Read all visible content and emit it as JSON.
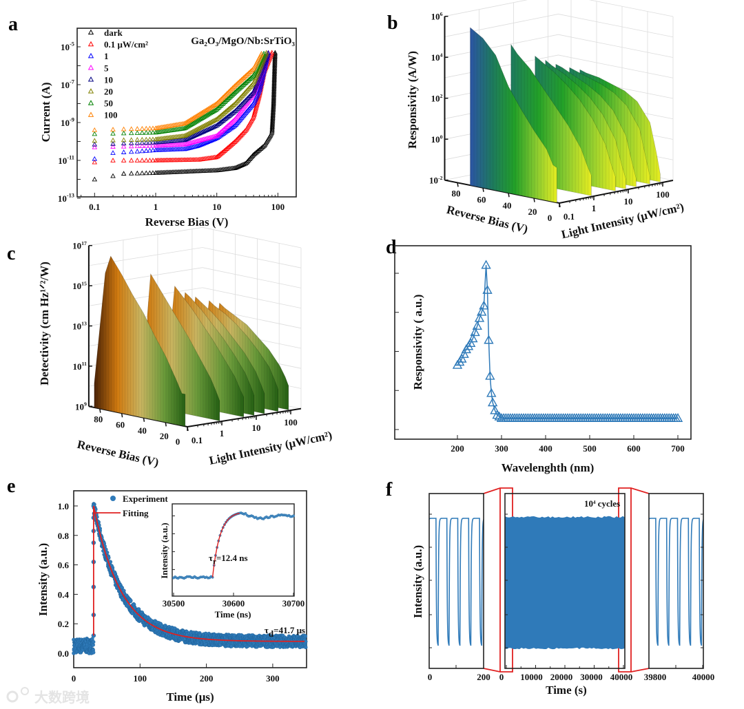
{
  "panel_labels": {
    "a": "a",
    "b": "b",
    "c": "c",
    "d": "d",
    "e": "e",
    "f": "f"
  },
  "watermark": "大数跨境",
  "chart_data": [
    {
      "panel": "a",
      "type": "scatter",
      "title": "Ga₂O₃/MgO/Nb:SrTiO₃",
      "xlabel": "Reverse Bias (V)",
      "ylabel": "Current (A)",
      "xscale": "log",
      "yscale": "log",
      "xlim": [
        0.05,
        200
      ],
      "ylim": [
        1e-13,
        0.0001
      ],
      "xticks": [
        0.1,
        1,
        10,
        100
      ],
      "xtick_labels": [
        "0.1",
        "1",
        "10",
        "100"
      ],
      "ytick_exponents": [
        -13,
        -11,
        -9,
        -7,
        -5
      ],
      "legend": {
        "position": "top-left",
        "unit": "μW/cm²"
      },
      "series": [
        {
          "name": "dark",
          "color": "#000000",
          "points": [
            [
              0.1,
              1e-12
            ],
            [
              0.2,
              1.5e-12
            ],
            [
              0.3,
              2e-12
            ],
            [
              1,
              2.2e-12
            ],
            [
              10,
              3e-12
            ],
            [
              20,
              4e-12
            ],
            [
              30,
              7e-12
            ],
            [
              40,
              2e-11
            ],
            [
              60,
              6e-11
            ],
            [
              75,
              2e-10
            ],
            [
              80,
              3e-10
            ],
            [
              85,
              1e-08
            ],
            [
              90,
              5e-06
            ]
          ]
        },
        {
          "name": "0.1",
          "color": "#ff0000",
          "points": [
            [
              0.1,
              8e-12
            ],
            [
              0.2,
              1e-11
            ],
            [
              1,
              1e-11
            ],
            [
              5,
              1.1e-11
            ],
            [
              10,
              1.5e-11
            ],
            [
              13,
              3e-11
            ],
            [
              20,
              1e-10
            ],
            [
              30,
              4e-10
            ],
            [
              40,
              2e-09
            ],
            [
              50,
              3e-08
            ],
            [
              60,
              5e-07
            ],
            [
              80,
              5e-06
            ]
          ]
        },
        {
          "name": "1",
          "color": "#0000ff",
          "points": [
            [
              0.1,
              1.2e-11
            ],
            [
              0.2,
              2.5e-11
            ],
            [
              0.5,
              3e-11
            ],
            [
              1,
              3.5e-11
            ],
            [
              3,
              4e-11
            ],
            [
              5,
              6e-11
            ],
            [
              10,
              1.5e-10
            ],
            [
              20,
              7e-10
            ],
            [
              40,
              1e-08
            ],
            [
              50,
              5e-08
            ],
            [
              70,
              5e-06
            ]
          ]
        },
        {
          "name": "5",
          "color": "#ff00ff",
          "points": [
            [
              0.1,
              5e-11
            ],
            [
              1,
              6e-11
            ],
            [
              3,
              7e-11
            ],
            [
              10,
              2e-10
            ],
            [
              20,
              1.5e-09
            ],
            [
              40,
              3e-08
            ],
            [
              70,
              5e-06
            ]
          ]
        },
        {
          "name": "10",
          "color": "#000080",
          "points": [
            [
              0.1,
              7e-11
            ],
            [
              1,
              9e-11
            ],
            [
              3,
              1.2e-10
            ],
            [
              10,
              7e-10
            ],
            [
              20,
              4e-09
            ],
            [
              40,
              4e-08
            ],
            [
              70,
              5e-06
            ]
          ]
        },
        {
          "name": "20",
          "color": "#808000",
          "points": [
            [
              0.1,
              1.1e-10
            ],
            [
              1,
              1.3e-10
            ],
            [
              3,
              2e-10
            ],
            [
              10,
              1.5e-09
            ],
            [
              20,
              1e-08
            ],
            [
              40,
              1.2e-07
            ],
            [
              65,
              5e-06
            ]
          ]
        },
        {
          "name": "50",
          "color": "#008000",
          "points": [
            [
              0.1,
              2.5e-10
            ],
            [
              1,
              3e-10
            ],
            [
              3,
              5e-10
            ],
            [
              10,
              5e-09
            ],
            [
              20,
              4e-08
            ],
            [
              40,
              3e-07
            ],
            [
              60,
              5e-06
            ]
          ]
        },
        {
          "name": "100",
          "color": "#ff8000",
          "points": [
            [
              0.1,
              4e-10
            ],
            [
              1,
              5e-10
            ],
            [
              3,
              9e-10
            ],
            [
              10,
              1e-08
            ],
            [
              20,
              9e-08
            ],
            [
              40,
              7e-07
            ],
            [
              55,
              5e-06
            ]
          ]
        }
      ]
    },
    {
      "panel": "b",
      "type": "area",
      "subtype": "3d-waterfall",
      "zlabel": "Responsivity (A/W)",
      "xlabel": "Reverse Bias (V)",
      "ylabel": "Light Intensity (μW/cm²)",
      "bias_ticks": [
        "80",
        "60",
        "40",
        "20",
        "0"
      ],
      "intensity_ticks": [
        "0.1",
        "1",
        "10",
        "100"
      ],
      "z_tick_exponents": [
        6,
        4,
        2,
        0,
        -2
      ],
      "zlim_log10": [
        -2,
        6
      ],
      "colormap": [
        "#2b55a5",
        "#1e7a5e",
        "#22a028",
        "#8ccc30",
        "#f0f020"
      ],
      "series": [
        {
          "intensity": 0.1,
          "bias": [
            70,
            60,
            50,
            40,
            30,
            20,
            10,
            5,
            2
          ],
          "log10_values": [
            5.7,
            5.3,
            4.6,
            3.2,
            2.2,
            1.3,
            0.5,
            -0.2,
            -0.3
          ]
        },
        {
          "intensity": 1,
          "bias": [
            65,
            60,
            50,
            40,
            30,
            20,
            10,
            5,
            2
          ],
          "log10_values": [
            4.6,
            4.2,
            3.6,
            2.8,
            2.0,
            1.2,
            0.2,
            -0.6,
            -1.0
          ]
        },
        {
          "intensity": 5,
          "bias": [
            65,
            60,
            50,
            40,
            30,
            20,
            10,
            5,
            2
          ],
          "log10_values": [
            3.8,
            3.6,
            3.2,
            2.7,
            2.1,
            1.3,
            0.2,
            -0.8,
            -1.3
          ]
        },
        {
          "intensity": 10,
          "bias": [
            65,
            60,
            50,
            40,
            30,
            20,
            10,
            5,
            2
          ],
          "log10_values": [
            3.5,
            3.3,
            3.0,
            2.6,
            2.1,
            1.4,
            0.3,
            -0.9,
            -1.5
          ]
        },
        {
          "intensity": 20,
          "bias": [
            65,
            60,
            50,
            40,
            30,
            20,
            10,
            5,
            2
          ],
          "log10_values": [
            3.2,
            3.1,
            2.8,
            2.5,
            2.1,
            1.5,
            0.4,
            -0.9,
            -1.6
          ]
        },
        {
          "intensity": 50,
          "bias": [
            65,
            60,
            50,
            40,
            30,
            20,
            10,
            5,
            2
          ],
          "log10_values": [
            2.9,
            2.8,
            2.6,
            2.4,
            2.1,
            1.6,
            0.6,
            -0.8,
            -1.6
          ]
        },
        {
          "intensity": 100,
          "bias": [
            65,
            60,
            50,
            40,
            30,
            20,
            10,
            5,
            2
          ],
          "log10_values": [
            2.7,
            2.6,
            2.5,
            2.3,
            2.1,
            1.7,
            0.8,
            -0.6,
            -1.6
          ]
        }
      ]
    },
    {
      "panel": "c",
      "type": "area",
      "subtype": "3d-waterfall",
      "zlabel": "Detectivity (cm Hz¹ᐟ²/W)",
      "xlabel": "Reverse Bias (V)",
      "ylabel": "Light Intensity (μW/cm²)",
      "bias_ticks": [
        "80",
        "60",
        "40",
        "20",
        "0"
      ],
      "intensity_ticks": [
        "0.1",
        "1",
        "10",
        "100"
      ],
      "z_tick_exponents": [
        17,
        15,
        13,
        11,
        9
      ],
      "zlim_log10": [
        9,
        17
      ],
      "colormap": [
        "#4a2206",
        "#d07a10",
        "#c8b460",
        "#6a9a3a",
        "#1e5a10"
      ],
      "series": [
        {
          "intensity": 0.1,
          "bias": [
            85,
            80,
            75,
            70,
            60,
            50,
            40,
            30,
            20,
            10,
            5,
            2
          ],
          "log10_values": [
            10.2,
            13.0,
            15.8,
            16.7,
            15.9,
            15.0,
            14.2,
            13.2,
            12.3,
            11.2,
            10.6,
            10.6
          ]
        },
        {
          "intensity": 1,
          "bias": [
            68,
            65,
            60,
            50,
            40,
            30,
            20,
            10,
            5,
            2
          ],
          "log10_values": [
            13.5,
            15.6,
            15.2,
            14.4,
            13.6,
            12.8,
            11.9,
            11.0,
            10.4,
            10.0
          ]
        },
        {
          "intensity": 5,
          "bias": [
            68,
            65,
            60,
            50,
            40,
            30,
            20,
            10,
            5,
            2
          ],
          "log10_values": [
            13.0,
            14.8,
            14.5,
            13.9,
            13.2,
            12.5,
            11.7,
            10.9,
            10.3,
            10.0
          ]
        },
        {
          "intensity": 10,
          "bias": [
            68,
            65,
            60,
            50,
            40,
            30,
            20,
            10,
            5,
            2
          ],
          "log10_values": [
            12.8,
            14.4,
            14.2,
            13.7,
            13.1,
            12.5,
            11.8,
            11.0,
            10.4,
            10.0
          ]
        },
        {
          "intensity": 20,
          "bias": [
            68,
            65,
            60,
            50,
            40,
            30,
            20,
            10,
            5,
            2
          ],
          "log10_values": [
            12.6,
            14.1,
            13.9,
            13.5,
            13.0,
            12.4,
            11.8,
            11.0,
            10.4,
            10.0
          ]
        },
        {
          "intensity": 50,
          "bias": [
            68,
            65,
            60,
            50,
            40,
            30,
            20,
            10,
            5,
            2
          ],
          "log10_values": [
            12.4,
            13.8,
            13.6,
            13.3,
            12.9,
            12.4,
            11.8,
            11.1,
            10.5,
            10.1
          ]
        },
        {
          "intensity": 100,
          "bias": [
            68,
            65,
            60,
            50,
            40,
            30,
            20,
            10,
            5,
            2
          ],
          "log10_values": [
            12.2,
            13.6,
            13.4,
            13.1,
            12.8,
            12.3,
            11.8,
            11.1,
            10.6,
            10.2
          ]
        }
      ]
    },
    {
      "panel": "d",
      "type": "line",
      "xlabel": "Wavelenghth (nm)",
      "ylabel": "Responsivity ( a.u.)",
      "xlim": [
        90,
        760
      ],
      "ylim": [
        -0.12,
        1.12
      ],
      "xticks": [
        200,
        300,
        400,
        500,
        600,
        700
      ],
      "xtick_labels": [
        "200",
        "300",
        "400",
        "500",
        "600",
        "700"
      ],
      "color": "#2f7ab9",
      "x": [
        200,
        205,
        210,
        215,
        220,
        225,
        230,
        235,
        240,
        245,
        250,
        255,
        260,
        265,
        268,
        271,
        274,
        277,
        280,
        285,
        290,
        295,
        300
      ],
      "y": [
        0.36,
        0.38,
        0.4,
        0.43,
        0.46,
        0.48,
        0.5,
        0.53,
        0.57,
        0.61,
        0.66,
        0.7,
        0.74,
        1.0,
        0.84,
        0.52,
        0.29,
        0.18,
        0.12,
        0.07,
        0.04,
        0.03,
        0.02
      ],
      "flat_tail": {
        "from": 305,
        "to": 700,
        "step": 5,
        "value": 0.02
      }
    },
    {
      "panel": "e",
      "type": "scatter",
      "xlabel": "Time (μs)",
      "ylabel": "Intensity (a.u.)",
      "xlim": [
        0,
        350
      ],
      "ylim": [
        -0.1,
        1.1
      ],
      "xticks": [
        0,
        100,
        200,
        300
      ],
      "xtick_labels": [
        "0",
        "100",
        "200",
        "300"
      ],
      "yticks": [
        0.0,
        0.2,
        0.4,
        0.6,
        0.8,
        1.0
      ],
      "ytick_labels": [
        "0.0",
        "0.2",
        "0.4",
        "0.6",
        "0.8",
        "1.0"
      ],
      "legend": {
        "position": "top-center",
        "experiment": "Experiment",
        "fitting": "Fitting"
      },
      "colors": {
        "experiment": "#2f7ab9",
        "fitting": "#e02020"
      },
      "model": {
        "onset_us": 30,
        "peak": 1.0,
        "baseline_before": 0.05,
        "baseline_after": 0.08,
        "tau_d_us": 41.7,
        "noise": 0.04
      },
      "annotation": {
        "tau": "τ",
        "sub": "d",
        "value": "=41.7 μs"
      },
      "inset": {
        "xlabel": "Time (ns)",
        "ylabel": "Intensity (a.u.)",
        "xlim": [
          30500,
          30700
        ],
        "xticks": [
          30500,
          30600,
          30700
        ],
        "xtick_labels": [
          "30500",
          "30600",
          "30700"
        ],
        "model": {
          "onset_ns": 30565,
          "base": 0.08,
          "plateau": 0.93,
          "tau_r_ns": 12.4,
          "fit_end_ns": 30610
        },
        "annotation": {
          "tau": "τ",
          "sub": "r",
          "value": "=12.4 ns"
        }
      }
    },
    {
      "panel": "f",
      "type": "line",
      "xlabel": "Time (s)",
      "ylabel": "Intensity (a.u.)",
      "annotation": {
        "base": "10",
        "exp": "4",
        "text": " cycles"
      },
      "color": "#2f7ab9",
      "highlight_color": "#e02020",
      "segments": [
        {
          "xlim": [
            0,
            200
          ],
          "tick_labels": [
            "0",
            "200"
          ]
        },
        {
          "xlim": [
            0,
            40000
          ],
          "tick_labels": [
            "0",
            "10000",
            "20000",
            "30000",
            "40000"
          ]
        },
        {
          "xlim": [
            39800,
            40000
          ],
          "tick_labels": [
            "39800",
            "40000"
          ]
        }
      ],
      "cycle": {
        "period_s": 40,
        "on_s": 32,
        "tau_s": 1.5,
        "high": 1.0,
        "low": 0.0
      }
    }
  ]
}
